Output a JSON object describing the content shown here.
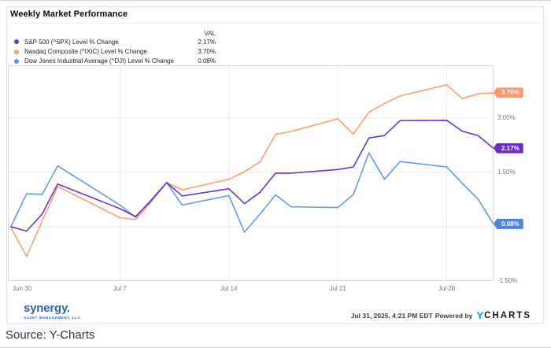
{
  "title": "Weekly Market Performance",
  "legend": {
    "val_header": "VAL",
    "items": [
      {
        "label": "S&P 500 (^SPX) Level % Change",
        "val": "2.17%",
        "color": "#6b34cc"
      },
      {
        "label": "Nasdaq Composite (^IXIC) Level % Change",
        "val": "3.70%",
        "color": "#f9a06e"
      },
      {
        "label": "Dow Jones Industrial Average (^DJI) Level % Change",
        "val": "0.08%",
        "color": "#5d97e3"
      }
    ]
  },
  "chart_data": {
    "type": "line",
    "title": "Weekly Market Performance",
    "xlabel": "",
    "ylabel": "Level % Change",
    "ylim": [
      -1.5,
      4.5
    ],
    "grid": true,
    "legend_position": "top-left",
    "x": [
      "Jun 30",
      "Jul 1",
      "Jul 2",
      "Jul 3",
      "Jul 7",
      "Jul 8",
      "Jul 9",
      "Jul 10",
      "Jul 11",
      "Jul 14",
      "Jul 15",
      "Jul 16",
      "Jul 17",
      "Jul 18",
      "Jul 21",
      "Jul 22",
      "Jul 23",
      "Jul 24",
      "Jul 25",
      "Jul 28",
      "Jul 29",
      "Jul 30",
      "Jul 31"
    ],
    "day_offsets": [
      0,
      1,
      2,
      3,
      7,
      8,
      9,
      10,
      11,
      14,
      15,
      16,
      17,
      18,
      21,
      22,
      23,
      24,
      25,
      28,
      29,
      30,
      31
    ],
    "x_ticks": [
      {
        "label": "Jun 30",
        "offset": 0
      },
      {
        "label": "Jul 7",
        "offset": 7
      },
      {
        "label": "Jul 14",
        "offset": 14
      },
      {
        "label": "Jul 21",
        "offset": 21
      },
      {
        "label": "Jul 28",
        "offset": 28
      }
    ],
    "y_ticks": [
      {
        "label": "3.00%",
        "value": 3.0
      },
      {
        "label": "1.50%",
        "value": 1.5
      },
      {
        "label": "-1.50%",
        "value": -1.5
      }
    ],
    "y_gridline_values": [
      3.0,
      1.5,
      0.0
    ],
    "series": [
      {
        "name": "Nasdaq Composite (^IXIC) Level % Change",
        "color": "#f9a06e",
        "badge_color": "#f8996b",
        "end_label": "3.70%",
        "values": [
          -0.03,
          -0.82,
          0.15,
          1.11,
          0.25,
          0.2,
          0.68,
          1.22,
          1.02,
          1.31,
          1.52,
          1.79,
          2.55,
          2.63,
          2.98,
          2.56,
          3.16,
          3.4,
          3.61,
          3.92,
          3.54,
          3.67,
          3.7
        ]
      },
      {
        "name": "Dow Jones Industrial Average (^DJI) Level % Change",
        "color": "#649be3",
        "badge_color": "#4f85d9",
        "end_label": "0.08%",
        "values": [
          0.01,
          0.91,
          0.89,
          1.68,
          0.6,
          0.26,
          0.74,
          1.22,
          0.6,
          0.86,
          -0.15,
          0.35,
          0.88,
          0.55,
          0.53,
          0.89,
          2.04,
          1.31,
          1.8,
          1.65,
          1.2,
          0.77,
          0.08
        ]
      },
      {
        "name": "S&P 500 (^SPX) Level % Change",
        "color": "#6b34cc",
        "badge_color": "#6d2cc7",
        "end_label": "2.17%",
        "values": [
          0.0,
          -0.12,
          0.35,
          1.18,
          0.5,
          0.28,
          0.72,
          1.22,
          0.85,
          1.05,
          0.64,
          0.95,
          1.48,
          1.48,
          1.58,
          1.65,
          2.45,
          2.52,
          2.93,
          2.94,
          2.64,
          2.52,
          2.17
        ]
      }
    ]
  },
  "footer": {
    "brand_name": "synergy.",
    "brand_sub": "ASSET MANAGEMENT, LLC",
    "timestamp": "Jul 31, 2025, 4:21 PM EDT",
    "powered_by": "Powered by",
    "ycharts_y": "Y",
    "ycharts_rest": "CHARTS"
  },
  "source_line": "Source: Y-Charts"
}
